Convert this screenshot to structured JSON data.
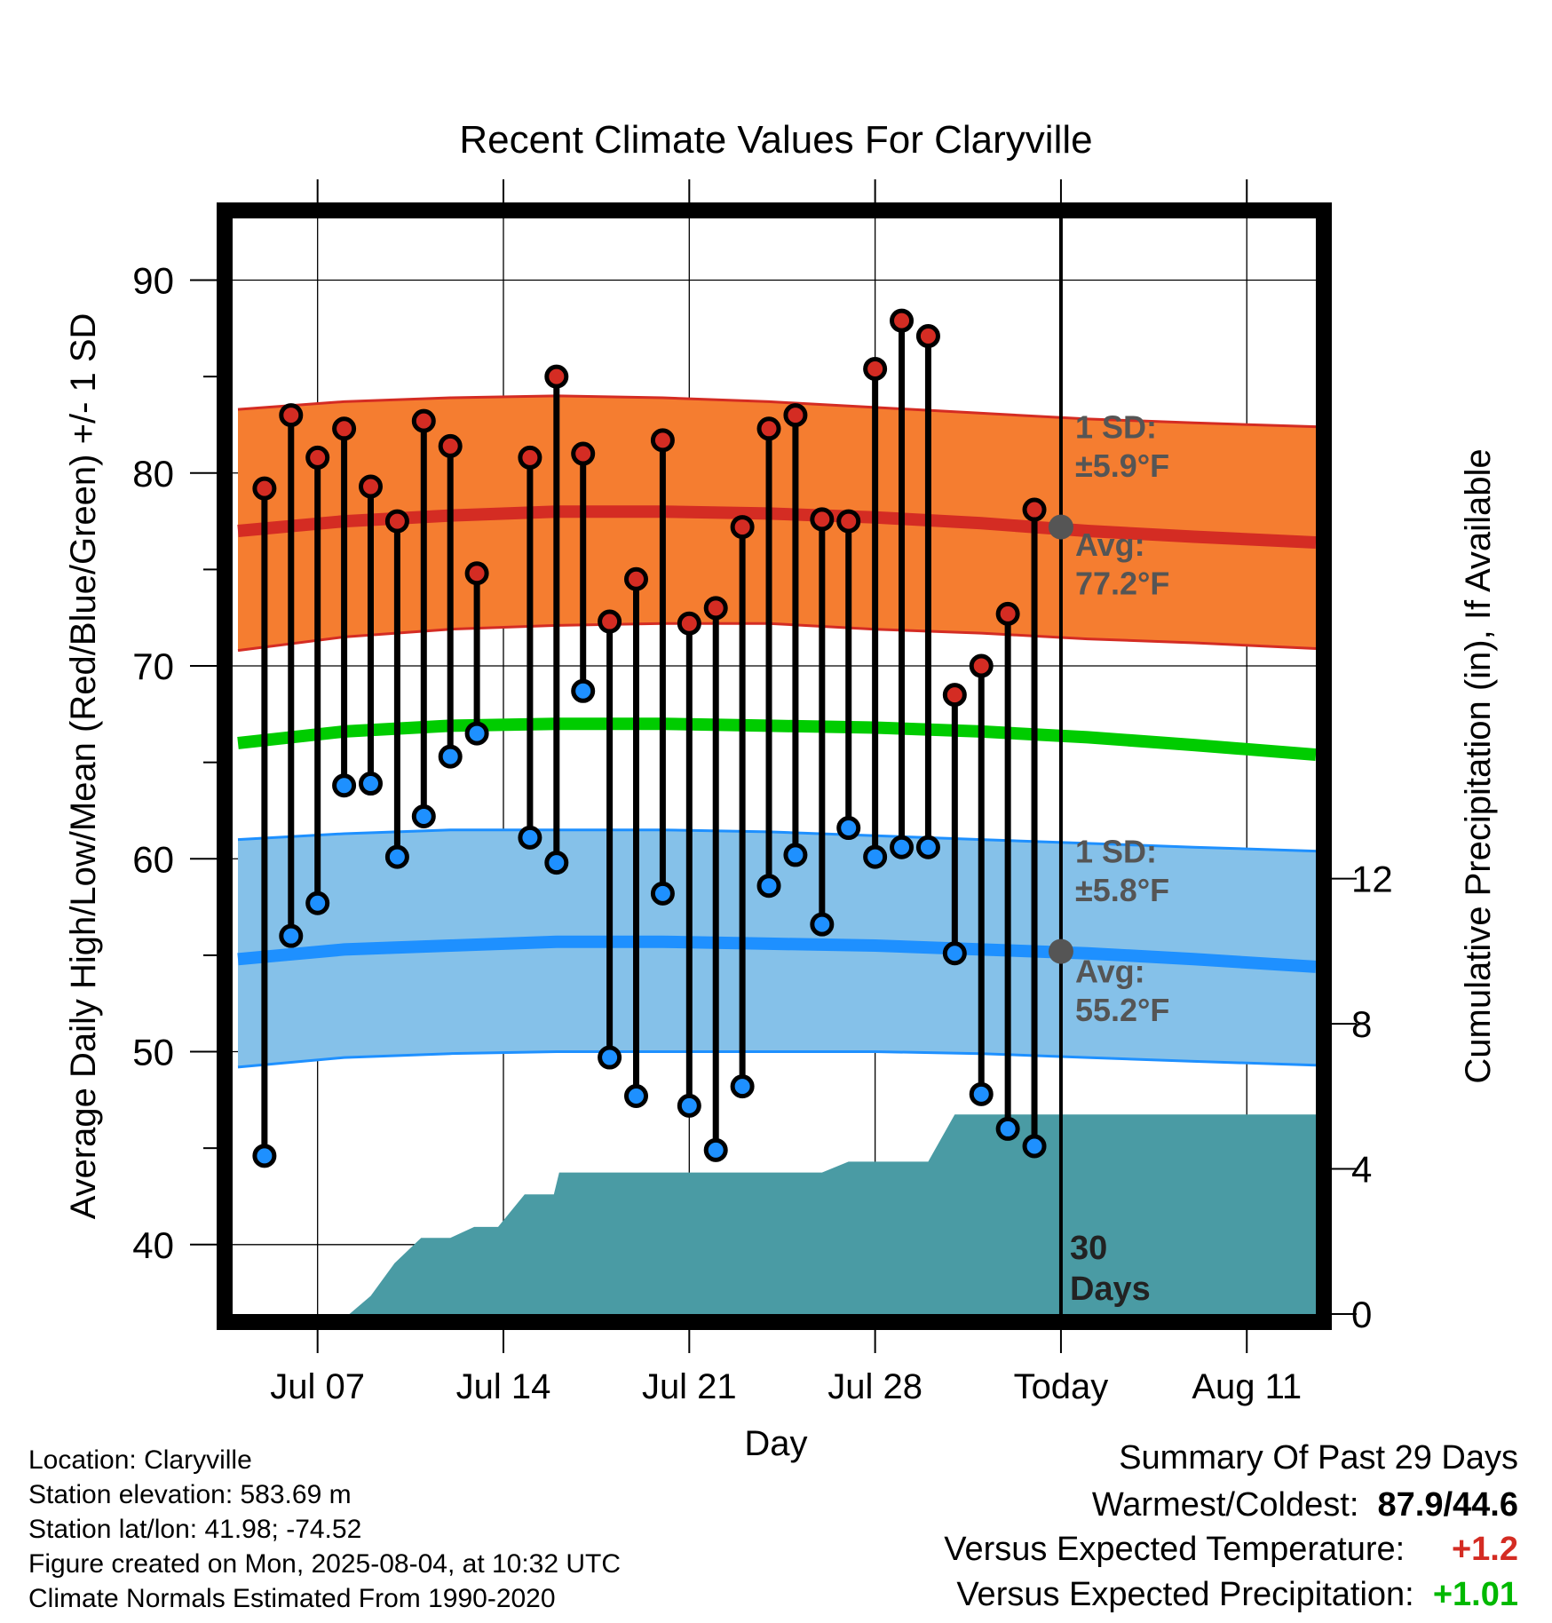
{
  "chart_data": {
    "type": "line",
    "title": "Recent Climate Values For Claryville",
    "xlabel": "Day",
    "ylabel": "Average Daily High/Low/Mean (Red/Blue/Green) +/- 1 SD",
    "y2label": "Cumulative Precipitation (in), If Available",
    "x_tick_labels": [
      "Jul 07",
      "Jul 14",
      "Jul 21",
      "Jul 28",
      "Today",
      "Aug 11"
    ],
    "x_range_day_of_july": [
      3.8,
      44.6
    ],
    "today_day_of_july": 35,
    "ylim": [
      36.4,
      93.2
    ],
    "y_ticks": [
      40,
      50,
      60,
      70,
      80,
      90
    ],
    "y2lim": [
      0,
      30.2
    ],
    "y2_ticks": [
      0,
      4,
      8,
      12
    ],
    "grid": true,
    "window_label": {
      "number": "30",
      "unit": "Days"
    },
    "normals": {
      "days": [
        4,
        8,
        12,
        16,
        20,
        24,
        28,
        32,
        36,
        40,
        44.6
      ],
      "high_mean": [
        77.0,
        77.5,
        77.8,
        78.0,
        78.0,
        77.9,
        77.7,
        77.4,
        77.0,
        76.7,
        76.4
      ],
      "high_sd_upper": [
        83.3,
        83.7,
        83.9,
        84.0,
        83.9,
        83.7,
        83.4,
        83.1,
        82.8,
        82.6,
        82.4
      ],
      "high_sd_lower": [
        70.8,
        71.5,
        71.9,
        72.1,
        72.2,
        72.2,
        71.9,
        71.7,
        71.4,
        71.2,
        70.9
      ],
      "mean_mean": [
        66.0,
        66.6,
        66.9,
        67.0,
        67.0,
        66.9,
        66.8,
        66.6,
        66.3,
        65.9,
        65.4
      ],
      "low_mean": [
        54.8,
        55.3,
        55.5,
        55.7,
        55.7,
        55.6,
        55.5,
        55.3,
        55.1,
        54.8,
        54.4
      ],
      "low_sd_upper": [
        61.0,
        61.3,
        61.5,
        61.5,
        61.5,
        61.4,
        61.2,
        61.0,
        60.8,
        60.6,
        60.4
      ],
      "low_sd_lower": [
        49.2,
        49.7,
        49.9,
        50.0,
        50.0,
        50.0,
        50.0,
        49.9,
        49.7,
        49.5,
        49.3
      ]
    },
    "annotations": {
      "high_sd_label": "1 SD:",
      "high_sd_value": "±5.9°F",
      "high_avg_label": "Avg:",
      "high_avg_value": "77.2°F",
      "low_sd_label": "1 SD:",
      "low_sd_value": "±5.8°F",
      "low_avg_label": "Avg:",
      "low_avg_value": "55.2°F",
      "high_avg_marker": 77.2,
      "low_avg_marker": 55.2
    },
    "observations": {
      "days": [
        5,
        6,
        7,
        8,
        9,
        10,
        11,
        12,
        13,
        15,
        16,
        17,
        18,
        19,
        20,
        21,
        22,
        23,
        24,
        25,
        26,
        27,
        28,
        29,
        30,
        31,
        32,
        33,
        34
      ],
      "highs": [
        79.2,
        83.0,
        80.8,
        82.3,
        79.3,
        77.5,
        82.7,
        81.4,
        74.8,
        80.8,
        85.0,
        81.0,
        72.3,
        74.5,
        81.7,
        72.2,
        73.0,
        77.2,
        82.3,
        83.0,
        77.6,
        77.5,
        85.4,
        87.9,
        87.1,
        68.5,
        70.0,
        72.7,
        78.1
      ],
      "lows": [
        44.6,
        56.0,
        57.7,
        63.8,
        63.9,
        60.1,
        62.2,
        65.3,
        66.5,
        61.1,
        59.8,
        68.7,
        49.7,
        47.7,
        58.2,
        47.2,
        44.9,
        48.2,
        58.6,
        60.2,
        56.6,
        61.6,
        60.1,
        60.6,
        60.6,
        55.1,
        47.8,
        46.0,
        45.1
      ]
    },
    "precip_cumulative": {
      "days": [
        5,
        6,
        7,
        8.2,
        9,
        9.9,
        10.9,
        11,
        12,
        12.9,
        13,
        13.8,
        14.8,
        15,
        15.9,
        16.1,
        17,
        18,
        19,
        20,
        21,
        22,
        23,
        24,
        25,
        26,
        27,
        27.9,
        28,
        29,
        30,
        31,
        31.2,
        32,
        33,
        34,
        35,
        36,
        40,
        44.6
      ],
      "values": [
        0,
        0,
        0,
        0,
        0.5,
        1.4,
        2.1,
        2.1,
        2.1,
        2.4,
        2.4,
        2.4,
        3.3,
        3.3,
        3.3,
        3.9,
        3.9,
        3.9,
        3.9,
        3.9,
        3.9,
        3.9,
        3.9,
        3.9,
        3.9,
        3.9,
        4.2,
        4.2,
        4.2,
        4.2,
        4.2,
        5.5,
        5.5,
        5.5,
        5.5,
        5.5,
        5.5,
        5.5,
        5.5,
        5.5
      ]
    },
    "colors": {
      "high_band": "#f57d30",
      "high_band_edge": "#d42c23",
      "high_line": "#d42c23",
      "mean_line": "#00cc00",
      "low_band": "#85c1e9",
      "low_band_edge": "#1e90ff",
      "low_line": "#1e90ff",
      "precip_fill": "#4a9ba4",
      "high_marker": "#d42c23",
      "low_marker": "#1e90ff",
      "annotation_text": "#555555",
      "avg_marker": "#555555"
    }
  },
  "info": {
    "location": "Location: Claryville",
    "elevation": "Station elevation: 583.69 m",
    "latlon": "Station lat/lon: 41.98; -74.52",
    "created": "Figure created on Mon, 2025-08-04, at 10:32 UTC",
    "normals": "Climate Normals Estimated From 1990-2020"
  },
  "summary": {
    "title": "Summary Of Past 29 Days",
    "warm_cold_label": "Warmest/Coldest:",
    "warm_cold_value": "87.9/44.6",
    "temp_label": "Versus Expected Temperature:",
    "temp_value": "+1.2",
    "temp_color": "#d42c23",
    "precip_label": "Versus Expected Precipitation:",
    "precip_value": "+1.01",
    "precip_color": "#00b800"
  }
}
